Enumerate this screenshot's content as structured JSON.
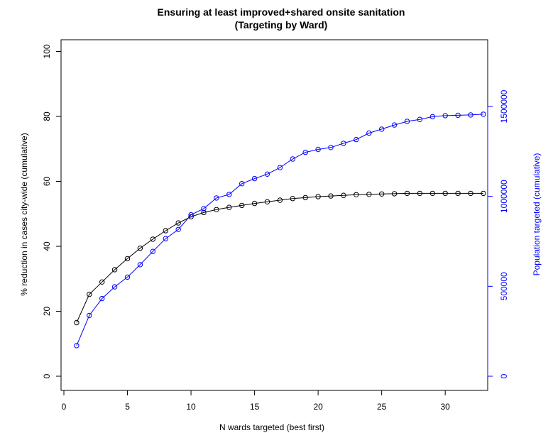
{
  "chart_data": {
    "type": "line",
    "title": "Ensuring at least improved+shared onsite sanitation",
    "subtitle": "(Targeting by Ward)",
    "xlabel": "N wards targeted (best first)",
    "ylabel": "% reduction in cases city-wide (cumulative)",
    "y2label": "Population targeted (cumulative)",
    "xlim": [
      0,
      34
    ],
    "ylim": [
      0,
      100
    ],
    "y2lim": [
      0,
      1800000
    ],
    "xticks": [
      0,
      5,
      10,
      15,
      20,
      25,
      30
    ],
    "yticks": [
      0,
      20,
      40,
      60,
      80,
      100
    ],
    "y2ticks": [
      0,
      500000,
      1000000,
      1500000
    ],
    "grid": false,
    "x": [
      1,
      2,
      3,
      4,
      5,
      6,
      7,
      8,
      9,
      10,
      11,
      12,
      13,
      14,
      15,
      16,
      17,
      18,
      19,
      20,
      21,
      22,
      23,
      24,
      25,
      26,
      27,
      28,
      29,
      30,
      31,
      32,
      33
    ],
    "series": [
      {
        "axis": "left",
        "color": "#000000",
        "values": [
          16.5,
          25.2,
          29.0,
          32.8,
          36.2,
          39.4,
          42.2,
          44.8,
          47.2,
          49.1,
          50.4,
          51.3,
          52.0,
          52.6,
          53.2,
          53.7,
          54.2,
          54.7,
          55.0,
          55.3,
          55.5,
          55.7,
          55.9,
          56.0,
          56.1,
          56.2,
          56.3,
          56.3,
          56.3,
          56.3,
          56.3,
          56.3,
          56.3
        ]
      },
      {
        "axis": "right",
        "color": "#0000ff",
        "values": [
          170000,
          338000,
          432000,
          497000,
          551000,
          620000,
          694000,
          765000,
          816000,
          898000,
          932000,
          991000,
          1011000,
          1071000,
          1099000,
          1124000,
          1160000,
          1208000,
          1245000,
          1261000,
          1272000,
          1295000,
          1316000,
          1352000,
          1374000,
          1397000,
          1417000,
          1428000,
          1443000,
          1449000,
          1451000,
          1453000,
          1457000
        ]
      }
    ]
  }
}
